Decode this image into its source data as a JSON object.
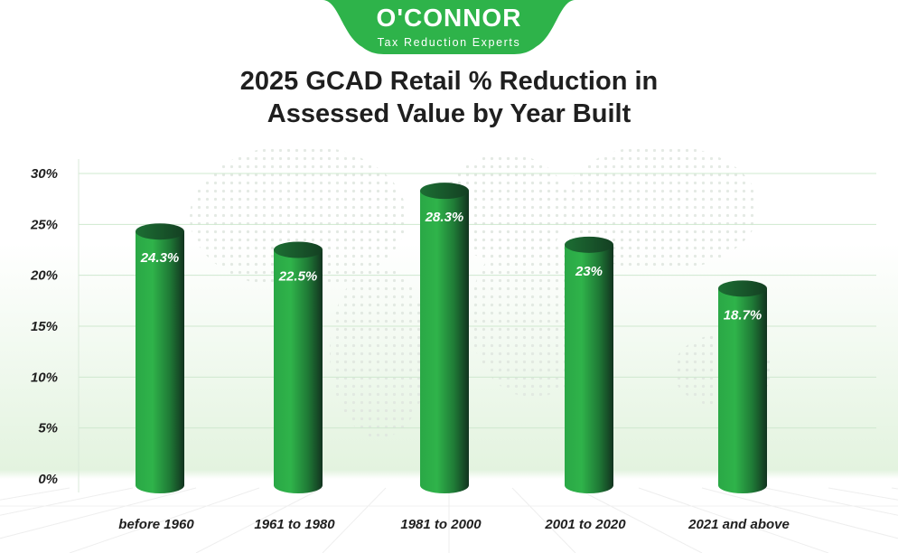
{
  "brand": {
    "name": "O'CONNOR",
    "tagline": "Tax Reduction Experts",
    "color": "#2eb34a"
  },
  "title_line1": "2025 GCAD Retail % Reduction in",
  "title_line2": "Assessed Value by Year Built",
  "chart_data": {
    "type": "bar",
    "title": "2025 GCAD Retail % Reduction in Assessed Value by Year Built",
    "xlabel": "",
    "ylabel": "",
    "categories": [
      "before 1960",
      "1961 to 1980",
      "1981 to 2000",
      "2001 to 2020",
      "2021 and above"
    ],
    "values": [
      24.3,
      22.5,
      28.3,
      23,
      18.7
    ],
    "data_labels": [
      "24.3%",
      "22.5%",
      "28.3%",
      "23%",
      "18.7%"
    ],
    "ylim": [
      0,
      30
    ],
    "yticks": [
      0,
      5,
      10,
      15,
      20,
      25,
      30
    ],
    "ytick_labels": [
      "0%",
      "5%",
      "10%",
      "15%",
      "20%",
      "25%",
      "30%"
    ],
    "grid": true,
    "legend": "none",
    "bar_style": "cylinder",
    "colors": {
      "bar_light": "#2fb34a",
      "bar_dark": "#12331f",
      "grid": "#cfe8cf",
      "label": "#1f1f1f"
    }
  }
}
